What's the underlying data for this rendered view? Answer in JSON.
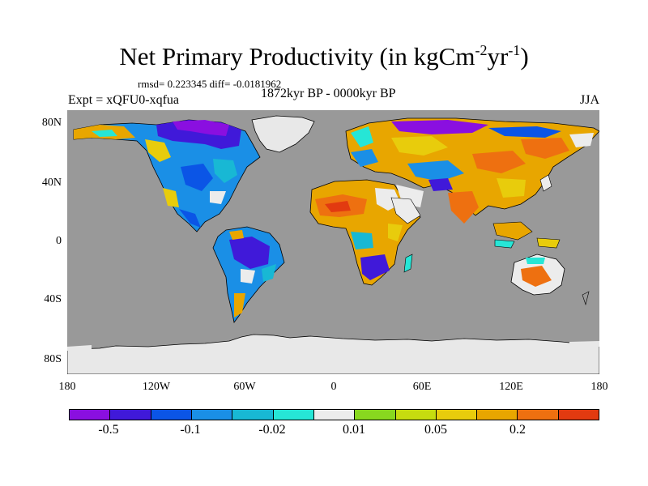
{
  "title": {
    "main": "Net Primary Productivity (in kgCm",
    "exp1": "-2",
    "mid": "yr",
    "exp2": "-1",
    "end": ")"
  },
  "stats": "rmsd= 0.223345 diff= -0.0181962",
  "experiment": "Expt = xQFU0-xqfua",
  "period": "1872kyr BP - 0000kyr BP",
  "season": "JJA",
  "lat_labels": [
    "80N",
    "40N",
    "0",
    "40S",
    "80S"
  ],
  "lon_labels": [
    "180",
    "120W",
    "60W",
    "0",
    "60E",
    "120E",
    "180"
  ],
  "colors": {
    "ocean": "#999999",
    "ice": "#e8e8e8",
    "coast": "#000000",
    "bins": [
      "#8a0fe0",
      "#4019d9",
      "#0b55e6",
      "#1a8fe6",
      "#18b8d4",
      "#26e6d6",
      "#ececec",
      "#88d81f",
      "#c6dc0f",
      "#e8cc0c",
      "#e8a600",
      "#ee7010",
      "#e23a10"
    ]
  },
  "colorbar_labels": [
    "-0.5",
    "-0.1",
    "-0.02",
    "0.01",
    "0.05",
    "0.2"
  ]
}
